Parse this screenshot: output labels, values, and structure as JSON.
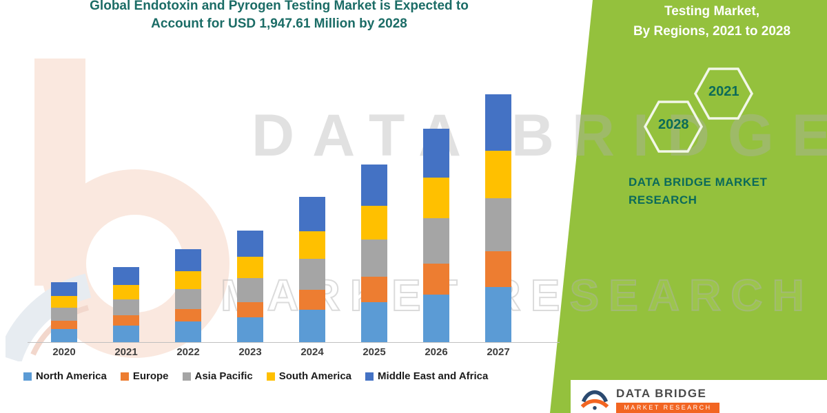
{
  "title": {
    "line1": "Global Endotoxin and Pyrogen Testing Market is Expected to",
    "line2": "Account for USD 1,947.61 Million by 2028"
  },
  "watermark": {
    "line1": "DATA BRIDGE",
    "line2": "MARKET RESEARCH"
  },
  "side_panel": {
    "heading_line1": "Testing Market,",
    "heading_line2": "By Regions, 2021 to 2028",
    "hex_back_label": "2028",
    "hex_front_label": "2021",
    "brand_line1": "DATA BRIDGE MARKET",
    "brand_line2": "RESEARCH",
    "band_color": "#94C13D",
    "teal_color": "#0C6B58"
  },
  "footer_logo": {
    "name": "DATA BRIDGE",
    "subtitle": "MARKET RESEARCH"
  },
  "chart_data": {
    "type": "bar",
    "stacked": true,
    "title": "Global Endotoxin and Pyrogen Testing Market is Expected to Account for USD 1,947.61 Million by 2028",
    "xlabel": "",
    "ylabel": "",
    "units": "USD Million",
    "ylim": [
      0,
      1900
    ],
    "y_axis_visible": false,
    "grid": false,
    "legend_position": "bottom",
    "categories": [
      "2020",
      "2021",
      "2022",
      "2023",
      "2024",
      "2025",
      "2026",
      "2027"
    ],
    "series": [
      {
        "name": "North America",
        "color": "#5B9BD5",
        "values": [
          95,
          120,
          150,
          180,
          235,
          290,
          345,
          400
        ]
      },
      {
        "name": "Europe",
        "color": "#ED7D31",
        "values": [
          60,
          75,
          90,
          110,
          145,
          185,
          225,
          260
        ]
      },
      {
        "name": "Asia Pacific",
        "color": "#A5A5A5",
        "values": [
          95,
          115,
          145,
          175,
          225,
          270,
          330,
          385
        ]
      },
      {
        "name": "South America",
        "color": "#FFC000",
        "values": [
          85,
          105,
          130,
          155,
          200,
          245,
          295,
          345
        ]
      },
      {
        "name": "Middle East and Africa",
        "color": "#4472C4",
        "values": [
          100,
          130,
          160,
          190,
          250,
          300,
          355,
          410
        ]
      }
    ],
    "totals": [
      435,
      545,
      675,
      810,
      1055,
      1290,
      1550,
      1800
    ]
  }
}
